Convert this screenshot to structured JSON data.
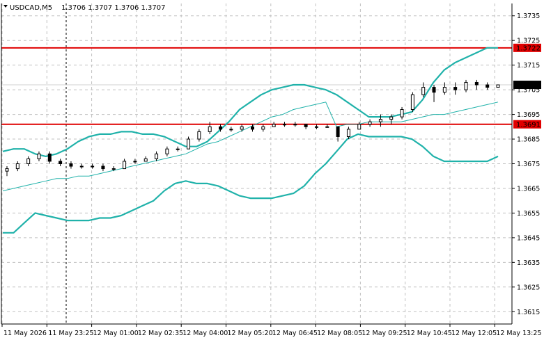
{
  "header": {
    "symbol_timeframe": "USDCAD,M5",
    "ohlc": "1.3706 1.3707 1.3706 1.3707"
  },
  "chart_data": {
    "type": "candlestick",
    "symbol": "USDCAD",
    "timeframe": "M5",
    "ylim": [
      1.361,
      1.374
    ],
    "y_ticks": [
      "1.3735",
      "1.3725",
      "1.3715",
      "1.3705",
      "1.3695",
      "1.3685",
      "1.3675",
      "1.3665",
      "1.3655",
      "1.3645",
      "1.3635",
      "1.3625",
      "1.3615"
    ],
    "x_ticks": [
      "11 May 2026",
      "11 May 23:25",
      "12 May 01:00",
      "12 May 02:35",
      "12 May 04:00",
      "12 May 05:20",
      "12 May 06:45",
      "12 May 08:05",
      "12 May 09:25",
      "12 May 10:45",
      "12 May 12:05",
      "12 May 13:25"
    ],
    "grid": true,
    "levels": [
      {
        "value": 1.3722,
        "label": "1.3722",
        "color": "#e00000"
      },
      {
        "value": 1.3691,
        "label": "1.3691",
        "color": "#e00000"
      }
    ],
    "current_price": {
      "value": 1.3707,
      "label": "1.3707",
      "color": "#000000"
    },
    "bollinger_upper": [
      1.368,
      1.3681,
      1.3681,
      1.3679,
      1.3678,
      1.3679,
      1.3681,
      1.3684,
      1.3686,
      1.3687,
      1.3687,
      1.3688,
      1.3688,
      1.3687,
      1.3687,
      1.3686,
      1.3684,
      1.3682,
      1.3682,
      1.3684,
      1.3688,
      1.3692,
      1.3697,
      1.37,
      1.3703,
      1.3705,
      1.3706,
      1.3707,
      1.3707,
      1.3706,
      1.3705,
      1.3703,
      1.37,
      1.3697,
      1.3694,
      1.3694,
      1.3694,
      1.3695,
      1.3696,
      1.3701,
      1.3708,
      1.3713,
      1.3716,
      1.3718,
      1.372,
      1.3722,
      1.3722
    ],
    "bollinger_middle": [
      1.3664,
      1.3665,
      1.3666,
      1.3667,
      1.3668,
      1.3669,
      1.3669,
      1.367,
      1.367,
      1.3671,
      1.3672,
      1.3673,
      1.3674,
      1.3675,
      1.3676,
      1.3677,
      1.3678,
      1.3679,
      1.3681,
      1.3683,
      1.3684,
      1.3686,
      1.3688,
      1.369,
      1.3692,
      1.3694,
      1.3695,
      1.3697,
      1.3698,
      1.3699,
      1.37,
      1.369,
      1.3691,
      1.3691,
      1.3692,
      1.3692,
      1.3692,
      1.3692,
      1.3693,
      1.3694,
      1.3695,
      1.3695,
      1.3696,
      1.3697,
      1.3698,
      1.3699,
      1.37
    ],
    "bollinger_lower": [
      1.3647,
      1.3647,
      1.3651,
      1.3655,
      1.3654,
      1.3653,
      1.3652,
      1.3652,
      1.3652,
      1.3653,
      1.3653,
      1.3654,
      1.3656,
      1.3658,
      1.366,
      1.3664,
      1.3667,
      1.3668,
      1.3667,
      1.3667,
      1.3666,
      1.3664,
      1.3662,
      1.3661,
      1.3661,
      1.3661,
      1.3662,
      1.3663,
      1.3666,
      1.3671,
      1.3675,
      1.368,
      1.3685,
      1.3687,
      1.3686,
      1.3686,
      1.3686,
      1.3686,
      1.3685,
      1.3682,
      1.3678,
      1.3676,
      1.3676,
      1.3676,
      1.3676,
      1.3676,
      1.3678
    ],
    "candles": [
      [
        1.3672,
        1.3674,
        1.367,
        1.3673
      ],
      [
        1.3673,
        1.3676,
        1.3672,
        1.3675
      ],
      [
        1.3675,
        1.3678,
        1.3674,
        1.3677
      ],
      [
        1.3677,
        1.368,
        1.3676,
        1.3679
      ],
      [
        1.3679,
        1.368,
        1.3675,
        1.3676
      ],
      [
        1.3676,
        1.3677,
        1.3674,
        1.3675
      ],
      [
        1.3675,
        1.3676,
        1.3673,
        1.3674
      ],
      [
        1.3674,
        1.3675,
        1.3673,
        1.3674
      ],
      [
        1.3674,
        1.3675,
        1.3673,
        1.3674
      ],
      [
        1.3674,
        1.3675,
        1.3672,
        1.3673
      ],
      [
        1.3673,
        1.3674,
        1.3672,
        1.3673
      ],
      [
        1.3673,
        1.3677,
        1.3673,
        1.3676
      ],
      [
        1.3676,
        1.3677,
        1.3675,
        1.3676
      ],
      [
        1.3676,
        1.3678,
        1.3676,
        1.3677
      ],
      [
        1.3677,
        1.368,
        1.3676,
        1.3679
      ],
      [
        1.3679,
        1.3682,
        1.3678,
        1.3681
      ],
      [
        1.3681,
        1.3682,
        1.368,
        1.3681
      ],
      [
        1.3681,
        1.3686,
        1.3681,
        1.3685
      ],
      [
        1.3685,
        1.3689,
        1.3684,
        1.3688
      ],
      [
        1.3688,
        1.3692,
        1.3687,
        1.369
      ],
      [
        1.369,
        1.3691,
        1.3688,
        1.3689
      ],
      [
        1.3689,
        1.369,
        1.3688,
        1.3689
      ],
      [
        1.3689,
        1.3691,
        1.3688,
        1.369
      ],
      [
        1.369,
        1.3691,
        1.3688,
        1.3689
      ],
      [
        1.3689,
        1.3691,
        1.3688,
        1.369
      ],
      [
        1.369,
        1.3692,
        1.369,
        1.3691
      ],
      [
        1.3691,
        1.3692,
        1.369,
        1.3691
      ],
      [
        1.3691,
        1.3692,
        1.369,
        1.3691
      ],
      [
        1.3691,
        1.3691,
        1.3689,
        1.369
      ],
      [
        1.369,
        1.3691,
        1.3689,
        1.369
      ],
      [
        1.369,
        1.3691,
        1.369,
        1.369
      ],
      [
        1.369,
        1.369,
        1.3684,
        1.3686
      ],
      [
        1.3686,
        1.369,
        1.3685,
        1.3689
      ],
      [
        1.3689,
        1.3692,
        1.3689,
        1.3691
      ],
      [
        1.3691,
        1.3693,
        1.369,
        1.3692
      ],
      [
        1.3692,
        1.3695,
        1.369,
        1.3693
      ],
      [
        1.3693,
        1.3695,
        1.3691,
        1.3694
      ],
      [
        1.3694,
        1.3698,
        1.3693,
        1.3697
      ],
      [
        1.3697,
        1.3704,
        1.3696,
        1.3703
      ],
      [
        1.3703,
        1.3708,
        1.3702,
        1.3706
      ],
      [
        1.3706,
        1.3707,
        1.37,
        1.3704
      ],
      [
        1.3704,
        1.3708,
        1.3703,
        1.3706
      ],
      [
        1.3706,
        1.3708,
        1.3703,
        1.3705
      ],
      [
        1.3705,
        1.3709,
        1.3704,
        1.3708
      ],
      [
        1.3708,
        1.3709,
        1.3705,
        1.3707
      ],
      [
        1.3707,
        1.3708,
        1.3705,
        1.3706
      ],
      [
        1.3706,
        1.3707,
        1.3706,
        1.3707
      ]
    ]
  }
}
